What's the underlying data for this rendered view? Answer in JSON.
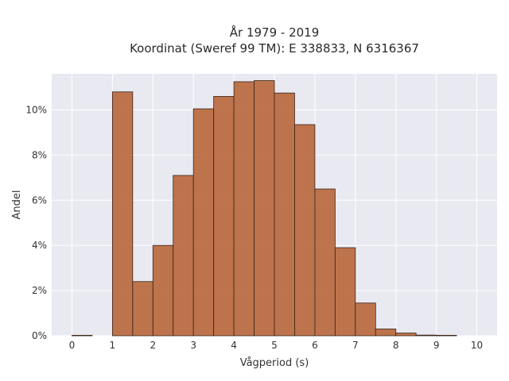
{
  "chart_data": {
    "type": "bar",
    "title_line1": "År 1979 - 2019",
    "title_line2": "Koordinat (Sweref 99 TM): E 338833, N 6316367",
    "xlabel": "Vågperiod (s)",
    "ylabel": "Andel",
    "xlim": [
      -0.5,
      10.5
    ],
    "ylim": [
      0,
      11.6
    ],
    "x_ticks": [
      0,
      1,
      2,
      3,
      4,
      5,
      6,
      7,
      8,
      9,
      10
    ],
    "y_ticks": [
      {
        "value": 0,
        "label": "0%"
      },
      {
        "value": 2,
        "label": "2%"
      },
      {
        "value": 4,
        "label": "4%"
      },
      {
        "value": 6,
        "label": "6%"
      },
      {
        "value": 8,
        "label": "8%"
      },
      {
        "value": 10,
        "label": "10%"
      }
    ],
    "grid": true,
    "bin_width": 0.5,
    "bins": [
      {
        "start": 0.0,
        "value": 0.02
      },
      {
        "start": 0.5,
        "value": 0.0
      },
      {
        "start": 1.0,
        "value": 10.8
      },
      {
        "start": 1.5,
        "value": 2.4
      },
      {
        "start": 2.0,
        "value": 4.0
      },
      {
        "start": 2.5,
        "value": 7.1
      },
      {
        "start": 3.0,
        "value": 10.05
      },
      {
        "start": 3.5,
        "value": 10.6
      },
      {
        "start": 4.0,
        "value": 11.25
      },
      {
        "start": 4.5,
        "value": 11.3
      },
      {
        "start": 5.0,
        "value": 10.75
      },
      {
        "start": 5.5,
        "value": 9.35
      },
      {
        "start": 6.0,
        "value": 6.5
      },
      {
        "start": 6.5,
        "value": 3.9
      },
      {
        "start": 7.0,
        "value": 1.45
      },
      {
        "start": 7.5,
        "value": 0.3
      },
      {
        "start": 8.0,
        "value": 0.12
      },
      {
        "start": 8.5,
        "value": 0.03
      },
      {
        "start": 9.0,
        "value": 0.02
      }
    ],
    "colors": {
      "bar_fill": "#b8663a",
      "bar_edge": "#3a2418",
      "plot_bg": "#e9e9f1",
      "grid": "#ffffff"
    }
  }
}
